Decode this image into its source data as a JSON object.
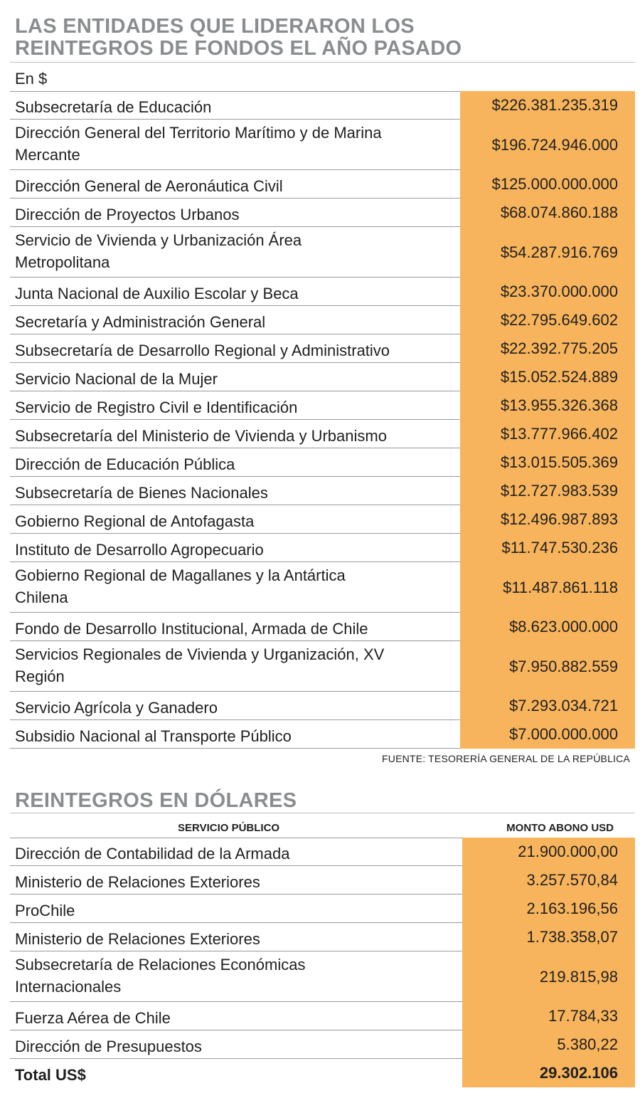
{
  "section1": {
    "title_line1": "LAS ENTIDADES QUE LIDERARON LOS",
    "title_line2": "REINTEGROS DE FONDOS EL AÑO PASADO",
    "unit": "En $",
    "rows": [
      {
        "name": [
          "Subsecretaría de Educación"
        ],
        "value": "$226.381.235.319"
      },
      {
        "name": [
          "Dirección General del Territorio Marítimo y de Marina",
          "Mercante"
        ],
        "value": "$196.724.946.000"
      },
      {
        "name": [
          "Dirección General de Aeronáutica Civil"
        ],
        "value": "$125.000.000.000"
      },
      {
        "name": [
          "Dirección de Proyectos Urbanos"
        ],
        "value": "$68.074.860.188"
      },
      {
        "name": [
          "Servicio de Vivienda y Urbanización Área",
          "Metropolitana"
        ],
        "value": "$54.287.916.769"
      },
      {
        "name": [
          "Junta Nacional de Auxilio Escolar y Beca"
        ],
        "value": "$23.370.000.000"
      },
      {
        "name": [
          "Secretaría y Administración General"
        ],
        "value": "$22.795.649.602"
      },
      {
        "name": [
          "Subsecretaría de Desarrollo Regional y Administrativo"
        ],
        "value": "$22.392.775.205"
      },
      {
        "name": [
          "Servicio Nacional de la Mujer"
        ],
        "value": "$15.052.524.889"
      },
      {
        "name": [
          "Servicio de Registro Civil e Identificación"
        ],
        "value": "$13.955.326.368"
      },
      {
        "name": [
          "Subsecretaría del Ministerio de Vivienda y Urbanismo"
        ],
        "value": "$13.777.966.402"
      },
      {
        "name": [
          "Dirección de Educación Pública"
        ],
        "value": "$13.015.505.369"
      },
      {
        "name": [
          "Subsecretaría de Bienes Nacionales"
        ],
        "value": "$12.727.983.539"
      },
      {
        "name": [
          "Gobierno Regional de Antofagasta"
        ],
        "value": "$12.496.987.893"
      },
      {
        "name": [
          "Instituto de Desarrollo Agropecuario"
        ],
        "value": "$11.747.530.236"
      },
      {
        "name": [
          "Gobierno Regional de Magallanes y la Antártica",
          "Chilena"
        ],
        "value": "$11.487.861.118"
      },
      {
        "name": [
          "Fondo de Desarrollo Institucional, Armada de Chile"
        ],
        "value": "$8.623.000.000"
      },
      {
        "name": [
          "Servicios Regionales de Vivienda y Urganización, XV",
          "Región"
        ],
        "value": "$7.950.882.559"
      },
      {
        "name": [
          "Servicio Agrícola y Ganadero"
        ],
        "value": "$7.293.034.721"
      },
      {
        "name": [
          "Subsidio Nacional al Transporte Público"
        ],
        "value": "$7.000.000.000"
      }
    ],
    "source": "FUENTE: TESORERÍA GENERAL DE LA REPÚBLICA"
  },
  "section2": {
    "title": "REINTEGROS EN DÓLARES",
    "col1": "SERVICIO PÚBLICO",
    "col2": "MONTO ABONO USD",
    "rows": [
      {
        "name": [
          "Dirección de Contabilidad de la Armada"
        ],
        "value": "21.900.000,00"
      },
      {
        "name": [
          "Ministerio de Relaciones Exteriores"
        ],
        "value": "3.257.570,84"
      },
      {
        "name": [
          "ProChile"
        ],
        "value": "2.163.196,56"
      },
      {
        "name": [
          "Ministerio de Relaciones Exteriores"
        ],
        "value": "1.738.358,07"
      },
      {
        "name": [
          "Subsecretaría de Relaciones Económicas",
          "Internacionales"
        ],
        "value": "219.815,98"
      },
      {
        "name": [
          "Fuerza Aérea de Chile"
        ],
        "value": "17.784,33"
      },
      {
        "name": [
          "Dirección de Presupuestos"
        ],
        "value": "5.380,22"
      }
    ],
    "total": {
      "name": "Total US$",
      "value": "29.302.106"
    }
  }
}
